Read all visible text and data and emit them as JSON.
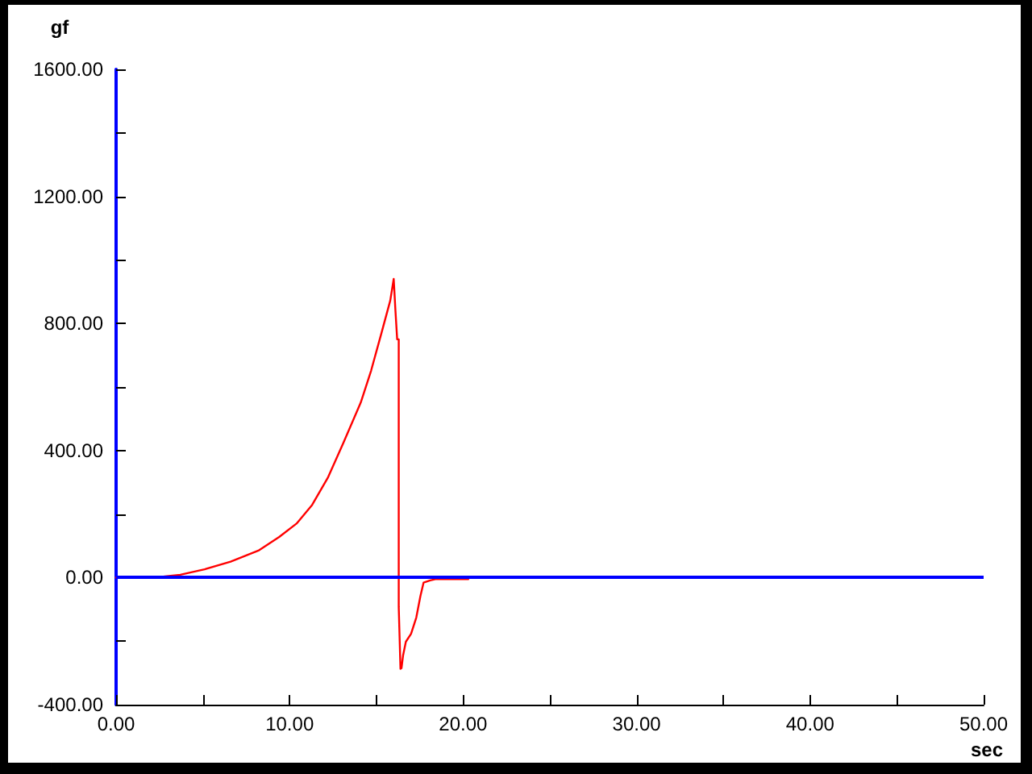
{
  "chart_data": {
    "type": "line",
    "xlabel": "sec",
    "ylabel": "gf",
    "x": [
      0,
      2.7,
      2.8,
      3.7,
      5.1,
      6.6,
      8.2,
      9.4,
      10.4,
      11.3,
      12.2,
      13.1,
      14.1,
      14.7,
      15.3,
      15.8,
      16.0,
      16.1,
      16.2,
      16.29,
      16.29,
      16.35,
      16.39,
      16.45,
      16.54,
      16.7,
      17.0,
      17.3,
      17.54,
      17.72,
      18.1,
      18.4,
      20.3
    ],
    "series": [
      {
        "color": "#ff0000",
        "values": [
          0,
          0,
          4,
          9,
          26,
          50,
          85,
          128,
          170,
          229,
          314,
          424,
          551,
          652,
          771,
          872,
          940,
          840,
          750,
          750,
          -92,
          -92,
          -287,
          -285,
          -245,
          -202,
          -177,
          -126,
          -58,
          -16,
          -9,
          -5,
          -5
        ]
      }
    ],
    "xlim": [
      0,
      50
    ],
    "xticks": [
      {
        "value": 0,
        "label": "0.00"
      },
      {
        "value": 5,
        "label": null
      },
      {
        "value": 10,
        "label": "10.00"
      },
      {
        "value": 15,
        "label": null
      },
      {
        "value": 20,
        "label": "20.00"
      },
      {
        "value": 25,
        "label": null
      },
      {
        "value": 30,
        "label": "30.00"
      },
      {
        "value": 35,
        "label": null
      },
      {
        "value": 40,
        "label": "40.00"
      },
      {
        "value": 45,
        "label": null
      },
      {
        "value": 50,
        "label": "50.00"
      }
    ],
    "ylim": [
      -400,
      1600
    ],
    "yticks": [
      {
        "value": -400,
        "label": "-400.00"
      },
      {
        "value": -200,
        "label": null
      },
      {
        "value": 0,
        "label": "0.00"
      },
      {
        "value": 200,
        "label": null
      },
      {
        "value": 400,
        "label": "400.00"
      },
      {
        "value": 600,
        "label": null
      },
      {
        "value": 800,
        "label": "800.00"
      },
      {
        "value": 1000,
        "label": null
      },
      {
        "value": 1200,
        "label": "1200.00"
      },
      {
        "value": 1400,
        "label": null
      },
      {
        "value": 1600,
        "label": "1600.00"
      }
    ],
    "ref_lines": [
      {
        "axis": "y",
        "value": 0,
        "color": "#0000ff"
      }
    ],
    "grid": false,
    "marker": "none",
    "line_style": "solid"
  }
}
